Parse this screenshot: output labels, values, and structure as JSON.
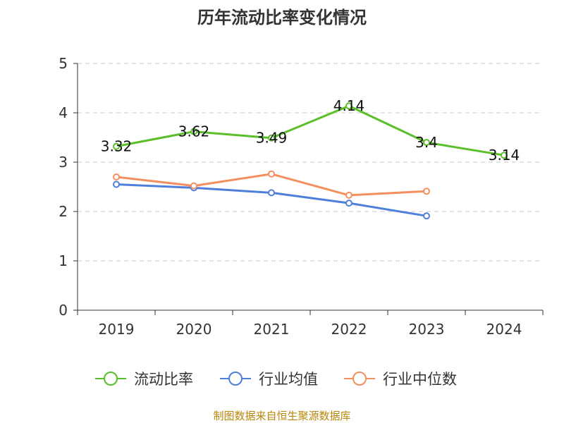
{
  "chart_data": {
    "type": "line",
    "title": "历年流动比率变化情况",
    "categories": [
      "2019",
      "2020",
      "2021",
      "2022",
      "2023",
      "2024"
    ],
    "yticks": [
      "0",
      "1",
      "2",
      "3",
      "4",
      "5"
    ],
    "ylim": [
      0,
      5
    ],
    "grid": true,
    "legend_position": "bottom",
    "series": [
      {
        "name": "流动比率",
        "color": "#5bbf2a",
        "values": [
          3.32,
          3.62,
          3.49,
          4.14,
          3.4,
          3.14
        ],
        "labels": [
          "3.32",
          "3.62",
          "3.49",
          "4.14",
          "3.4",
          "3.14"
        ],
        "show_labels": true
      },
      {
        "name": "行业均值",
        "color": "#4f7fdc",
        "values": [
          2.55,
          2.48,
          2.38,
          2.17,
          1.91,
          null
        ],
        "show_labels": false
      },
      {
        "name": "行业中位数",
        "color": "#f4905f",
        "values": [
          2.7,
          2.52,
          2.76,
          2.33,
          2.41,
          null
        ],
        "show_labels": false
      }
    ],
    "source": "制图数据来自恒生聚源数据库"
  }
}
